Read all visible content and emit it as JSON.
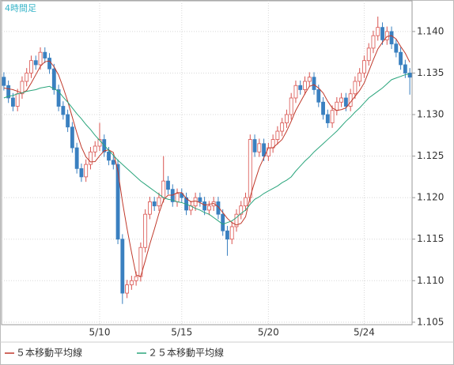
{
  "chart_data": {
    "type": "candlestick",
    "title": "4時間足",
    "categories": [
      null,
      null,
      null,
      null,
      null,
      null,
      null,
      null,
      null,
      null,
      null,
      null,
      null,
      null,
      null,
      null,
      null,
      null,
      null,
      null,
      null,
      "5/10",
      null,
      null,
      null,
      null,
      null,
      null,
      null,
      null,
      null,
      null,
      null,
      null,
      null,
      null,
      null,
      null,
      null,
      "5/15",
      null,
      null,
      null,
      null,
      null,
      null,
      null,
      null,
      null,
      null,
      null,
      null,
      null,
      null,
      null,
      null,
      null,
      null,
      "5/20",
      null,
      null,
      null,
      null,
      null,
      null,
      null,
      null,
      null,
      null,
      null,
      null,
      null,
      null,
      null,
      null,
      null,
      null,
      null,
      null,
      "5/24",
      null,
      null,
      null,
      null,
      null,
      null,
      null,
      null,
      null,
      null
    ],
    "open": [
      1.1345,
      1.1335,
      1.132,
      1.131,
      1.1325,
      1.134,
      1.135,
      1.1365,
      1.136,
      1.1375,
      1.1368,
      1.1355,
      1.133,
      1.131,
      1.13,
      1.1285,
      1.126,
      1.1235,
      1.1225,
      1.124,
      1.1255,
      1.1262,
      1.127,
      1.1255,
      1.1245,
      1.124,
      1.115,
      1.1085,
      1.1095,
      1.11,
      1.1105,
      1.114,
      1.118,
      1.1195,
      1.119,
      1.12,
      1.122,
      1.121,
      1.1195,
      1.1205,
      1.12,
      1.1185,
      1.119,
      1.12,
      1.1195,
      1.1185,
      1.119,
      1.1195,
      1.118,
      1.116,
      1.115,
      1.1165,
      1.118,
      1.119,
      1.12,
      1.127,
      1.1255,
      1.1265,
      1.125,
      1.126,
      1.127,
      1.128,
      1.129,
      1.13,
      1.132,
      1.1335,
      1.133,
      1.134,
      1.1345,
      1.133,
      1.1315,
      1.13,
      1.129,
      1.1305,
      1.1315,
      1.132,
      1.131,
      1.1325,
      1.134,
      1.135,
      1.1365,
      1.138,
      1.1395,
      1.1405,
      1.139,
      1.14,
      1.1385,
      1.1375,
      1.136,
      1.135
    ],
    "high": [
      1.1351,
      1.1341,
      1.1326,
      1.1331,
      1.1346,
      1.1356,
      1.1371,
      1.1371,
      1.1381,
      1.1381,
      1.1374,
      1.1361,
      1.1336,
      1.1316,
      1.1306,
      1.1291,
      1.1266,
      1.1241,
      1.1246,
      1.1261,
      1.1268,
      1.129,
      1.1276,
      1.1261,
      1.1251,
      1.1246,
      1.1156,
      1.1101,
      1.1106,
      1.1111,
      1.1146,
      1.1186,
      1.1201,
      1.1201,
      1.1206,
      1.125,
      1.1226,
      1.1216,
      1.1211,
      1.1211,
      1.1206,
      1.1196,
      1.1206,
      1.1206,
      1.1201,
      1.1196,
      1.1201,
      1.1201,
      1.1186,
      1.1166,
      1.1171,
      1.1186,
      1.1196,
      1.1206,
      1.1276,
      1.1276,
      1.1271,
      1.1271,
      1.1266,
      1.1276,
      1.1286,
      1.1296,
      1.1306,
      1.1326,
      1.1341,
      1.1341,
      1.1346,
      1.1351,
      1.1351,
      1.1336,
      1.1321,
      1.1306,
      1.1311,
      1.1321,
      1.1326,
      1.1326,
      1.1331,
      1.1346,
      1.1356,
      1.1371,
      1.1386,
      1.1401,
      1.1418,
      1.1411,
      1.1406,
      1.1406,
      1.1391,
      1.1381,
      1.1366,
      1.1356
    ],
    "low": [
      1.1329,
      1.1314,
      1.1304,
      1.1304,
      1.1319,
      1.1334,
      1.1344,
      1.1354,
      1.1354,
      1.1362,
      1.1349,
      1.1324,
      1.1304,
      1.1294,
      1.1279,
      1.1254,
      1.1229,
      1.1219,
      1.1219,
      1.1234,
      1.1249,
      1.1256,
      1.1249,
      1.1239,
      1.1234,
      1.1144,
      1.1072,
      1.1079,
      1.1089,
      1.1094,
      1.1099,
      1.1134,
      1.1174,
      1.1184,
      1.1184,
      1.1194,
      1.1204,
      1.1189,
      1.1189,
      1.1194,
      1.1179,
      1.1179,
      1.1184,
      1.1189,
      1.1179,
      1.1179,
      1.1184,
      1.1174,
      1.1154,
      1.113,
      1.1144,
      1.1159,
      1.1174,
      1.1184,
      1.1194,
      1.1249,
      1.1249,
      1.1244,
      1.1244,
      1.1254,
      1.1264,
      1.1274,
      1.1284,
      1.1294,
      1.1314,
      1.1324,
      1.1324,
      1.1334,
      1.1324,
      1.1309,
      1.1294,
      1.1284,
      1.1284,
      1.1299,
      1.1309,
      1.1304,
      1.1304,
      1.1319,
      1.1334,
      1.1344,
      1.1359,
      1.1374,
      1.1389,
      1.1384,
      1.1384,
      1.1379,
      1.1369,
      1.1354,
      1.1344,
      1.1324
    ],
    "close": [
      1.1335,
      1.132,
      1.131,
      1.1325,
      1.134,
      1.135,
      1.1365,
      1.136,
      1.1375,
      1.1368,
      1.1355,
      1.133,
      1.131,
      1.13,
      1.1285,
      1.126,
      1.1235,
      1.1225,
      1.124,
      1.1255,
      1.1262,
      1.127,
      1.1255,
      1.1245,
      1.124,
      1.115,
      1.1085,
      1.1095,
      1.11,
      1.1105,
      1.114,
      1.118,
      1.1195,
      1.119,
      1.12,
      1.122,
      1.121,
      1.1195,
      1.1205,
      1.12,
      1.1185,
      1.119,
      1.12,
      1.1195,
      1.1185,
      1.119,
      1.1195,
      1.118,
      1.116,
      1.115,
      1.1165,
      1.118,
      1.119,
      1.12,
      1.127,
      1.1255,
      1.1265,
      1.125,
      1.126,
      1.127,
      1.128,
      1.129,
      1.13,
      1.132,
      1.1335,
      1.133,
      1.134,
      1.1345,
      1.133,
      1.1315,
      1.13,
      1.129,
      1.1305,
      1.1315,
      1.132,
      1.131,
      1.1325,
      1.134,
      1.135,
      1.1365,
      1.138,
      1.1395,
      1.1405,
      1.139,
      1.14,
      1.1385,
      1.1375,
      1.136,
      1.135,
      1.1345
    ],
    "up_color": "#d9534f",
    "down_color": "#3a80c0",
    "series": [
      {
        "name": "５本移動平均線",
        "color": "#c0392b",
        "values": [
          1.1332,
          1.1331,
          1.133,
          1.1328,
          1.1326,
          1.1329,
          1.1338,
          1.1348,
          1.1358,
          1.13636,
          1.13646,
          1.13576,
          1.13476,
          1.13326,
          1.1316,
          1.1297,
          1.1278,
          1.1261,
          1.1249,
          1.1243,
          1.12434,
          1.12504,
          1.12564,
          1.12574,
          1.12544,
          1.1232,
          1.1195,
          1.1163,
          1.1134,
          1.1107,
          1.1105,
          1.1124,
          1.1144,
          1.1162,
          1.1181,
          1.1197,
          1.1203,
          1.1203,
          1.1206,
          1.1206,
          1.1199,
          1.1195,
          1.1196,
          1.1194,
          1.1191,
          1.1192,
          1.1193,
          1.1189,
          1.1182,
          1.1175,
          1.117,
          1.1167,
          1.1169,
          1.1177,
          1.1201,
          1.1219,
          1.1236,
          1.1248,
          1.126,
          1.126,
          1.1265,
          1.127,
          1.128,
          1.1292,
          1.1305,
          1.1315,
          1.1325,
          1.1334,
          1.1336,
          1.1332,
          1.1326,
          1.1316,
          1.1308,
          1.1305,
          1.1306,
          1.1308,
          1.1315,
          1.1322,
          1.1329,
          1.1338,
          1.1352,
          1.1366,
          1.1379,
          1.1387,
          1.1394,
          1.1395,
          1.1391,
          1.1382,
          1.1374,
          1.1363
        ]
      },
      {
        "name": "２５本移動平均線",
        "color": "#2aa57c",
        "values": [
          1.132,
          1.1322,
          1.1323,
          1.1325,
          1.1326,
          1.1328,
          1.1329,
          1.133,
          1.1332,
          1.1333,
          1.1334,
          1.1331,
          1.1328,
          1.1321,
          1.1315,
          1.1308,
          1.1301,
          1.1295,
          1.1288,
          1.1282,
          1.1275,
          1.1269,
          1.1263,
          1.1257,
          1.1251,
          1.1245,
          1.124,
          1.1235,
          1.123,
          1.1225,
          1.122,
          1.1216,
          1.1212,
          1.1208,
          1.1204,
          1.12,
          1.1198,
          1.1197,
          1.1195,
          1.1194,
          1.1192,
          1.119,
          1.1187,
          1.1185,
          1.1182,
          1.118,
          1.1176,
          1.1172,
          1.1168,
          1.117,
          1.1172,
          1.1176,
          1.1181,
          1.1185,
          1.1192,
          1.1198,
          1.1201,
          1.1205,
          1.1208,
          1.1211,
          1.1214,
          1.1218,
          1.1221,
          1.1225,
          1.1232,
          1.1238,
          1.1244,
          1.1249,
          1.1255,
          1.126,
          1.1265,
          1.127,
          1.1275,
          1.128,
          1.1286,
          1.1292,
          1.1297,
          1.1303,
          1.1308,
          1.1314,
          1.132,
          1.1324,
          1.1328,
          1.1332,
          1.1337,
          1.1342,
          1.1344,
          1.1346,
          1.1348,
          1.1349
        ]
      }
    ],
    "ylim": [
      1.1047,
      1.1437
    ],
    "yticks": [
      {
        "value": 1.105,
        "label": "1.105"
      },
      {
        "value": 1.11,
        "label": "1.110"
      },
      {
        "value": 1.115,
        "label": "1.115"
      },
      {
        "value": 1.12,
        "label": "1.120"
      },
      {
        "value": 1.125,
        "label": "1.125"
      },
      {
        "value": 1.13,
        "label": "1.130"
      },
      {
        "value": 1.135,
        "label": "1.135"
      },
      {
        "value": 1.14,
        "label": "1.140"
      }
    ],
    "grid": true
  }
}
